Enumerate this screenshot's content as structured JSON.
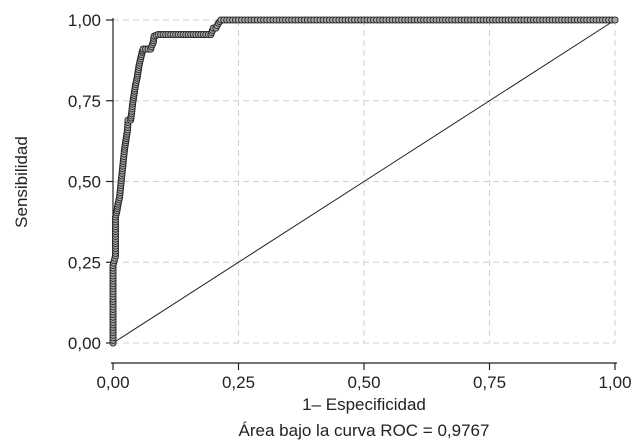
{
  "chart_data": {
    "type": "line",
    "title": "",
    "xlabel": "1– Especificidad",
    "ylabel": "Sensibilidad",
    "caption": "Área bajo la curva ROC = 0,9767",
    "xlim": [
      0,
      1
    ],
    "ylim": [
      0,
      1
    ],
    "x_ticks": [
      0,
      0.25,
      0.5,
      0.75,
      1
    ],
    "y_ticks": [
      0,
      0.25,
      0.5,
      0.75,
      1
    ],
    "x_tick_labels": [
      "0,00",
      "0,25",
      "0,50",
      "0,75",
      "1,00"
    ],
    "y_tick_labels": [
      "0,00",
      "0,25",
      "0,50",
      "0,75",
      "1,00"
    ],
    "grid": true,
    "grid_style": "dashed",
    "colors": {
      "marker_fill": "#a6a6a6",
      "marker_stroke": "#222222",
      "line": "#222222",
      "grid": "#d0d0d0"
    },
    "series": [
      {
        "kind": "roc_curve_with_markers",
        "points": [
          [
            0.0,
            0.0
          ],
          [
            0.0,
            0.04
          ],
          [
            0.0,
            0.08
          ],
          [
            0.0,
            0.12
          ],
          [
            0.0,
            0.16
          ],
          [
            0.0,
            0.2
          ],
          [
            0.0,
            0.24
          ],
          [
            0.005,
            0.27
          ],
          [
            0.005,
            0.3
          ],
          [
            0.005,
            0.33
          ],
          [
            0.005,
            0.36
          ],
          [
            0.005,
            0.39
          ],
          [
            0.008,
            0.41
          ],
          [
            0.01,
            0.43
          ],
          [
            0.013,
            0.45
          ],
          [
            0.015,
            0.48
          ],
          [
            0.017,
            0.51
          ],
          [
            0.019,
            0.54
          ],
          [
            0.021,
            0.57
          ],
          [
            0.023,
            0.6
          ],
          [
            0.025,
            0.62
          ],
          [
            0.027,
            0.64
          ],
          [
            0.029,
            0.66
          ],
          [
            0.03,
            0.69
          ],
          [
            0.035,
            0.69
          ],
          [
            0.037,
            0.71
          ],
          [
            0.039,
            0.74
          ],
          [
            0.041,
            0.76
          ],
          [
            0.043,
            0.78
          ],
          [
            0.045,
            0.8
          ],
          [
            0.048,
            0.82
          ],
          [
            0.05,
            0.84
          ],
          [
            0.052,
            0.86
          ],
          [
            0.055,
            0.88
          ],
          [
            0.058,
            0.9
          ],
          [
            0.06,
            0.91
          ],
          [
            0.065,
            0.91
          ],
          [
            0.07,
            0.91
          ],
          [
            0.075,
            0.91
          ],
          [
            0.08,
            0.93
          ],
          [
            0.082,
            0.95
          ],
          [
            0.09,
            0.955
          ],
          [
            0.1,
            0.955
          ],
          [
            0.11,
            0.955
          ],
          [
            0.12,
            0.955
          ],
          [
            0.13,
            0.955
          ],
          [
            0.14,
            0.955
          ],
          [
            0.15,
            0.955
          ],
          [
            0.16,
            0.955
          ],
          [
            0.17,
            0.955
          ],
          [
            0.18,
            0.955
          ],
          [
            0.19,
            0.955
          ],
          [
            0.195,
            0.955
          ],
          [
            0.2,
            0.975
          ],
          [
            0.205,
            0.975
          ],
          [
            0.21,
            0.99
          ],
          [
            0.215,
            1.0
          ],
          [
            0.25,
            1.0
          ],
          [
            0.3,
            1.0
          ],
          [
            0.35,
            1.0
          ],
          [
            0.4,
            1.0
          ],
          [
            0.45,
            1.0
          ],
          [
            0.5,
            1.0
          ],
          [
            0.55,
            1.0
          ],
          [
            0.6,
            1.0
          ],
          [
            0.65,
            1.0
          ],
          [
            0.7,
            1.0
          ],
          [
            0.75,
            1.0
          ],
          [
            0.8,
            1.0
          ],
          [
            0.85,
            1.0
          ],
          [
            0.9,
            1.0
          ],
          [
            0.95,
            1.0
          ],
          [
            1.0,
            1.0
          ]
        ]
      },
      {
        "kind": "reference_line",
        "points": [
          [
            0,
            0
          ],
          [
            1,
            1
          ]
        ]
      }
    ]
  }
}
